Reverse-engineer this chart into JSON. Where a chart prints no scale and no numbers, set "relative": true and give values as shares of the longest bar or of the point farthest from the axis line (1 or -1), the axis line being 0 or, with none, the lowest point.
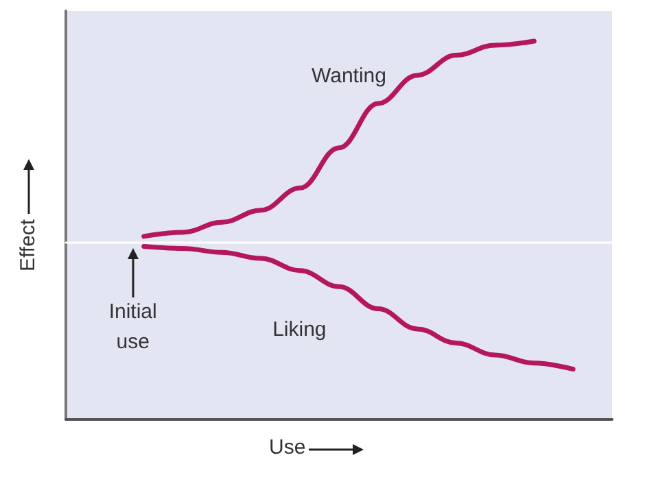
{
  "chart_data": {
    "type": "line",
    "relative": true,
    "xlabel": "Use",
    "ylabel": "Effect",
    "categories": [
      null,
      null,
      null,
      null,
      null,
      null,
      null,
      null,
      null,
      null,
      null,
      null,
      null,
      null,
      null
    ],
    "series": [
      {
        "name": "Wanting",
        "color": "#b5175e",
        "values": [
          null,
          null,
          0.03,
          0.05,
          0.1,
          0.16,
          0.27,
          0.47,
          0.69,
          0.83,
          0.93,
          0.98,
          1.0,
          null,
          null
        ]
      },
      {
        "name": "Liking",
        "color": "#b5175e",
        "values": [
          null,
          null,
          -0.02,
          -0.03,
          -0.05,
          -0.08,
          -0.14,
          -0.22,
          -0.33,
          -0.43,
          -0.5,
          -0.56,
          -0.6,
          -0.63,
          null
        ]
      }
    ],
    "annotations": [
      "Initial use"
    ],
    "grid": false,
    "legend": false,
    "marker": "none",
    "line_style": "solid"
  }
}
